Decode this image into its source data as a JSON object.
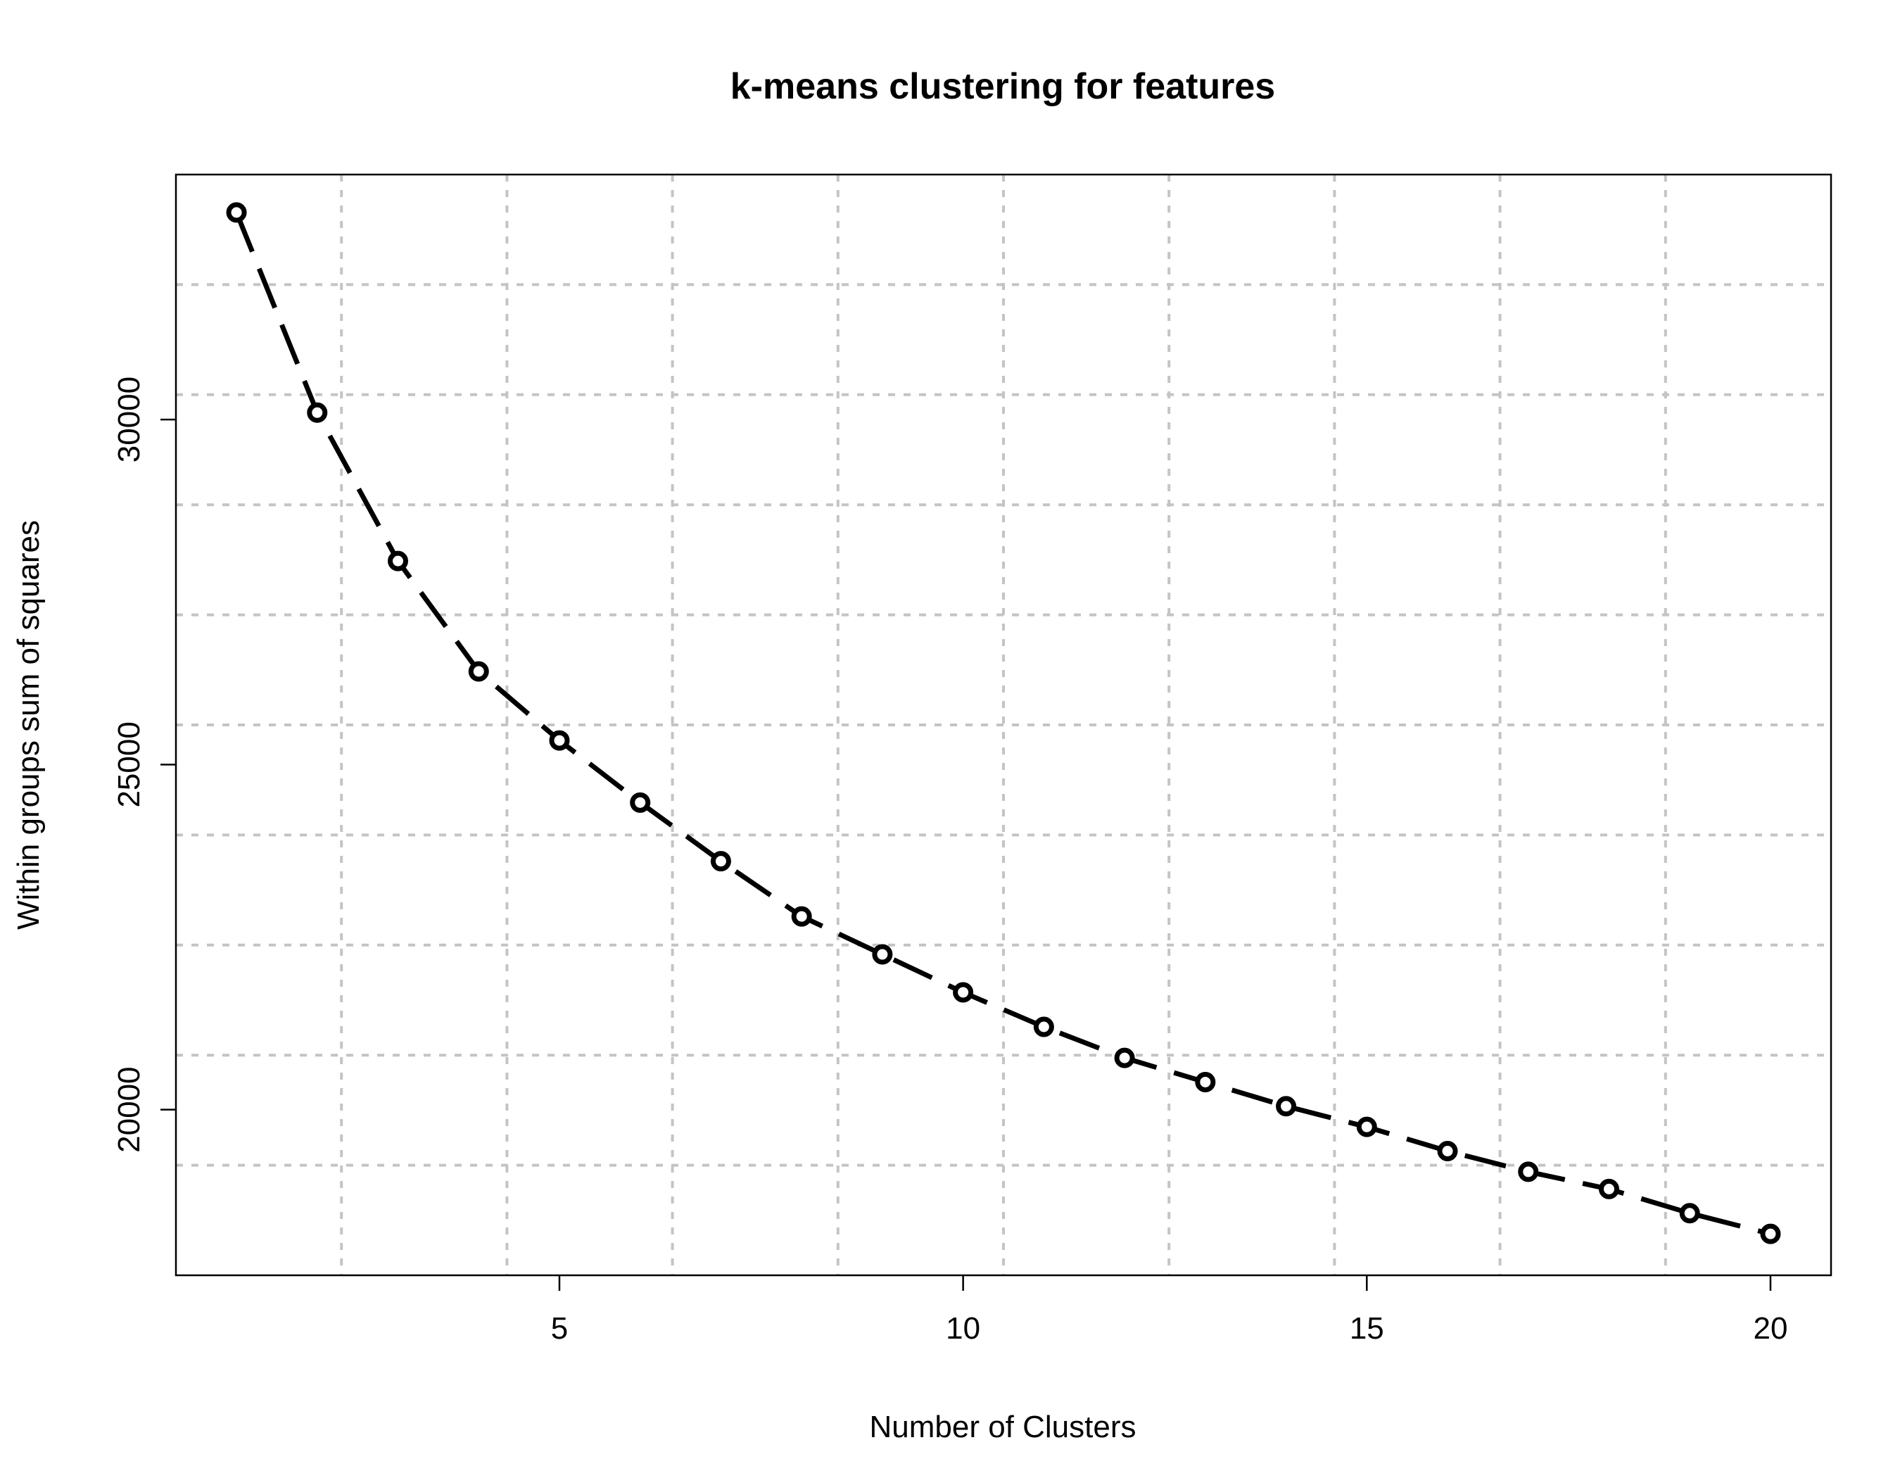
{
  "chart_data": {
    "type": "line",
    "title": "k-means clustering for features",
    "xlabel": "Number of Clusters",
    "ylabel": "Within groups sum of squares",
    "xlim": [
      0.25,
      20.75
    ],
    "ylim": [
      17600,
      33550
    ],
    "x_ticks": [
      5,
      10,
      15,
      20
    ],
    "y_ticks": [
      20000,
      25000,
      30000
    ],
    "grid": true,
    "series": [
      {
        "x": [
          1,
          2,
          3,
          4,
          5,
          6,
          7,
          8,
          9,
          10,
          11,
          12,
          13,
          14,
          15,
          16,
          17,
          18,
          19,
          20
        ],
        "values": [
          33000,
          30100,
          27950,
          26350,
          25350,
          24450,
          23600,
          22800,
          22250,
          21700,
          21200,
          20750,
          20400,
          20050,
          19750,
          19400,
          19100,
          18850,
          18500,
          18200
        ]
      }
    ]
  }
}
